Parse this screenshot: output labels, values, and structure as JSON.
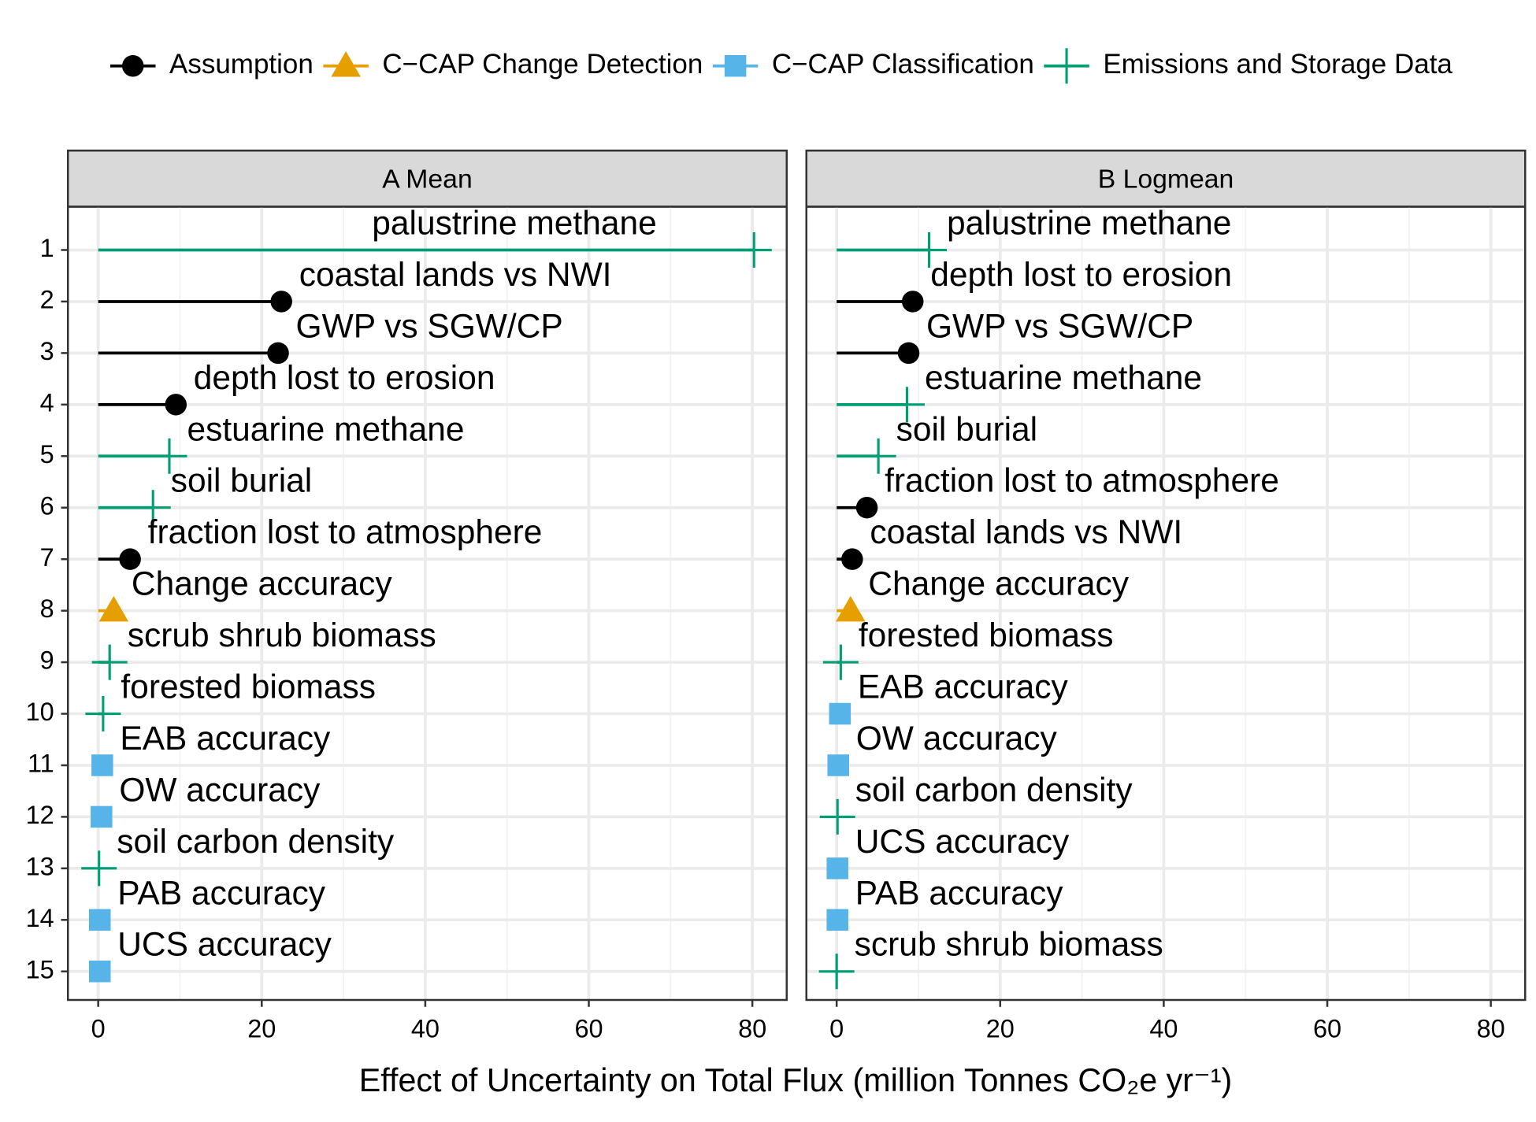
{
  "chart_data": {
    "type": "dot",
    "x_label": "Effect of Uncertainty on Total Flux (million Tonnes CO₂e yr⁻¹)",
    "legend": [
      {
        "name": "Assumption",
        "color": "#000000",
        "marker": "circle"
      },
      {
        "name": "C−CAP Change Detection",
        "color": "#E69F00",
        "marker": "triangle"
      },
      {
        "name": "C−CAP Classification",
        "color": "#56B4E9",
        "marker": "square"
      },
      {
        "name": "Emissions and Storage Data",
        "color": "#009E73",
        "marker": "plus"
      }
    ],
    "xlim": [
      -3.7,
      84.2
    ],
    "xticks": [
      0,
      20,
      40,
      60,
      80
    ],
    "grid": true,
    "panels": [
      {
        "title": "A Mean",
        "categories": [
          "1",
          "2",
          "3",
          "4",
          "5",
          "6",
          "7",
          "8",
          "9",
          "10",
          "11",
          "12",
          "13",
          "14",
          "15"
        ],
        "labels": [
          "palustrine methane",
          "coastal lands vs NWI",
          "GWP vs SGW/CP",
          "depth lost to erosion",
          "estuarine methane",
          "soil burial",
          "fraction lost to atmosphere",
          "Change accuracy",
          "scrub shrub biomass",
          "forested biomass",
          "EAB accuracy",
          "OW accuracy",
          "soil carbon density",
          "PAB accuracy",
          "UCS accuracy"
        ],
        "values": [
          80.2,
          22.4,
          22.0,
          9.5,
          8.7,
          6.7,
          3.9,
          1.9,
          1.4,
          0.6,
          0.5,
          0.4,
          0.1,
          0.2,
          0.2
        ],
        "groups": [
          3,
          0,
          0,
          0,
          3,
          3,
          0,
          1,
          3,
          3,
          2,
          2,
          3,
          2,
          2
        ]
      },
      {
        "title": "B Logmean",
        "categories": [
          "1",
          "2",
          "3",
          "4",
          "5",
          "6",
          "7",
          "8",
          "9",
          "10",
          "11",
          "12",
          "13",
          "14",
          "15"
        ],
        "labels": [
          "palustrine methane",
          "depth lost to erosion",
          "GWP vs SGW/CP",
          "estuarine methane",
          "soil burial",
          "fraction lost to atmosphere",
          "coastal lands vs NWI",
          "Change accuracy",
          "forested biomass",
          "EAB accuracy",
          "OW accuracy",
          "soil carbon density",
          "UCS accuracy",
          "PAB accuracy",
          "scrub shrub biomass"
        ],
        "values": [
          11.3,
          9.3,
          8.8,
          8.6,
          5.1,
          3.7,
          1.9,
          1.7,
          0.5,
          0.4,
          0.2,
          0.1,
          0.1,
          0.1,
          0.0
        ],
        "groups": [
          3,
          0,
          0,
          3,
          3,
          0,
          0,
          1,
          3,
          2,
          2,
          3,
          2,
          2,
          3
        ]
      }
    ]
  }
}
